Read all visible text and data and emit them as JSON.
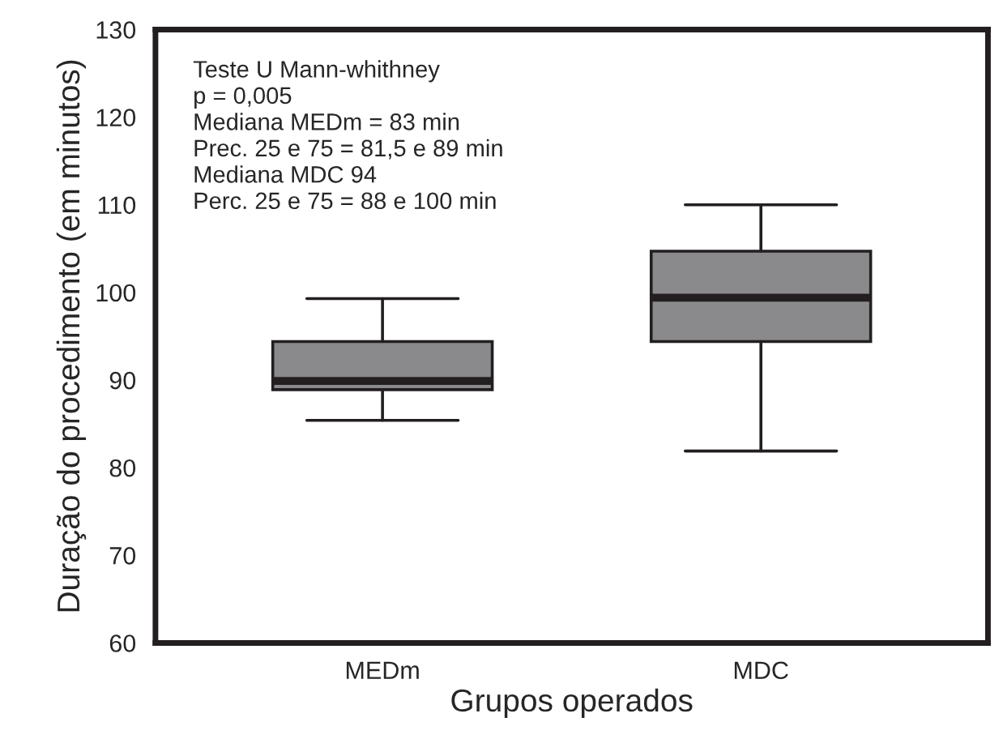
{
  "chart_data": {
    "type": "box",
    "xlabel": "Grupos operados",
    "ylabel": "Duração do procedimento (em minutos)",
    "categories": [
      "MEDm",
      "MDC"
    ],
    "boxes": [
      {
        "low": 85.4,
        "q1": 88.9,
        "median": 89.9,
        "q3": 94.4,
        "high": 99.3
      },
      {
        "low": 81.9,
        "q1": 94.4,
        "median": 99.4,
        "q3": 104.7,
        "high": 110
      }
    ],
    "color": "#8a8a8d",
    "ylim": [
      60,
      130
    ],
    "yticks": [
      60,
      70,
      80,
      90,
      100,
      110,
      120,
      130
    ],
    "annotations": [
      "Teste U Mann-whithney\np = 0,005\nMediana MEDm = 83 min\nPrec. 25 e 75 = 81,5 e 89 min\nMediana MDC 94\nPerc. 25 e 75 = 88 e 100 min"
    ],
    "grid": false
  }
}
